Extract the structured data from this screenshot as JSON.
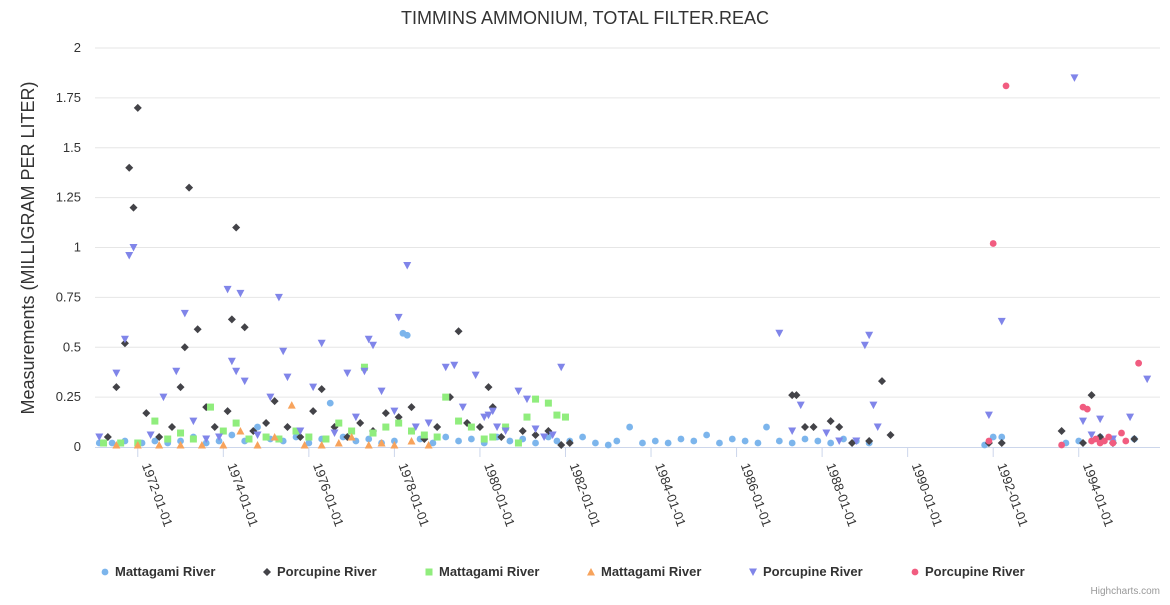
{
  "chart_data": {
    "type": "scatter",
    "title": "TIMMINS AMMONIUM, TOTAL FILTER.REAC",
    "xlabel": "",
    "ylabel": "Measurements (MILLIGRAM PER LITER)",
    "ylim": [
      0,
      2
    ],
    "yticks": [
      "0",
      "0.25",
      "0.5",
      "0.75",
      "1",
      "1.25",
      "1.5",
      "1.75",
      "2"
    ],
    "xlim": [
      1971.0,
      1995.9
    ],
    "xticks": [
      {
        "year": 1972,
        "label": "1972-01-01"
      },
      {
        "year": 1974,
        "label": "1974-01-01"
      },
      {
        "year": 1976,
        "label": "1976-01-01"
      },
      {
        "year": 1978,
        "label": "1978-01-01"
      },
      {
        "year": 1980,
        "label": "1980-01-01"
      },
      {
        "year": 1982,
        "label": "1982-01-01"
      },
      {
        "year": 1984,
        "label": "1984-01-01"
      },
      {
        "year": 1986,
        "label": "1986-01-01"
      },
      {
        "year": 1988,
        "label": "1988-01-01"
      },
      {
        "year": 1990,
        "label": "1990-01-01"
      },
      {
        "year": 1992,
        "label": "1992-01-01"
      },
      {
        "year": 1994,
        "label": "1994-01-01"
      }
    ],
    "legend_position": "bottom-center",
    "series": [
      {
        "name": "Mattagami River",
        "marker": "circle",
        "color": "#7cb5ec",
        "points": [
          [
            1971.1,
            0.02
          ],
          [
            1971.4,
            0.02
          ],
          [
            1971.7,
            0.03
          ],
          [
            1972.1,
            0.02
          ],
          [
            1972.4,
            0.03
          ],
          [
            1972.7,
            0.02
          ],
          [
            1973.0,
            0.03
          ],
          [
            1973.3,
            0.05
          ],
          [
            1973.6,
            0.02
          ],
          [
            1973.9,
            0.03
          ],
          [
            1974.2,
            0.06
          ],
          [
            1974.5,
            0.03
          ],
          [
            1974.8,
            0.1
          ],
          [
            1975.1,
            0.04
          ],
          [
            1975.4,
            0.03
          ],
          [
            1975.7,
            0.05
          ],
          [
            1976.0,
            0.02
          ],
          [
            1976.3,
            0.04
          ],
          [
            1976.5,
            0.22
          ],
          [
            1976.8,
            0.05
          ],
          [
            1977.1,
            0.03
          ],
          [
            1977.4,
            0.04
          ],
          [
            1977.7,
            0.02
          ],
          [
            1978.0,
            0.03
          ],
          [
            1978.2,
            0.57
          ],
          [
            1978.3,
            0.56
          ],
          [
            1978.6,
            0.04
          ],
          [
            1978.9,
            0.02
          ],
          [
            1979.2,
            0.05
          ],
          [
            1979.5,
            0.03
          ],
          [
            1979.8,
            0.04
          ],
          [
            1980.1,
            0.02
          ],
          [
            1980.4,
            0.05
          ],
          [
            1980.7,
            0.03
          ],
          [
            1981.0,
            0.04
          ],
          [
            1981.3,
            0.02
          ],
          [
            1981.6,
            0.05
          ],
          [
            1981.8,
            0.03
          ],
          [
            1982.1,
            0.03
          ],
          [
            1982.4,
            0.05
          ],
          [
            1982.7,
            0.02
          ],
          [
            1983.0,
            0.01
          ],
          [
            1983.2,
            0.03
          ],
          [
            1983.5,
            0.1
          ],
          [
            1983.8,
            0.02
          ],
          [
            1984.1,
            0.03
          ],
          [
            1984.4,
            0.02
          ],
          [
            1984.7,
            0.04
          ],
          [
            1985.0,
            0.03
          ],
          [
            1985.3,
            0.06
          ],
          [
            1985.6,
            0.02
          ],
          [
            1985.9,
            0.04
          ],
          [
            1986.2,
            0.03
          ],
          [
            1986.5,
            0.02
          ],
          [
            1986.7,
            0.1
          ],
          [
            1987.0,
            0.03
          ],
          [
            1987.3,
            0.02
          ],
          [
            1987.6,
            0.04
          ],
          [
            1987.9,
            0.03
          ],
          [
            1988.2,
            0.02
          ],
          [
            1988.5,
            0.04
          ],
          [
            1988.8,
            0.03
          ],
          [
            1989.1,
            0.02
          ],
          [
            1991.8,
            0.01
          ],
          [
            1992.0,
            0.05
          ],
          [
            1992.2,
            0.05
          ],
          [
            1993.7,
            0.02
          ],
          [
            1994.0,
            0.03
          ],
          [
            1994.5,
            0.05
          ],
          [
            1994.8,
            0.03
          ],
          [
            1995.3,
            0.04
          ]
        ]
      },
      {
        "name": "Porcupine River",
        "marker": "diamond",
        "color": "#434348",
        "points": [
          [
            1971.3,
            0.05
          ],
          [
            1971.5,
            0.3
          ],
          [
            1971.7,
            0.52
          ],
          [
            1971.8,
            1.4
          ],
          [
            1971.9,
            1.2
          ],
          [
            1972.0,
            1.7
          ],
          [
            1972.2,
            0.17
          ],
          [
            1972.5,
            0.05
          ],
          [
            1972.8,
            0.1
          ],
          [
            1973.0,
            0.3
          ],
          [
            1973.1,
            0.5
          ],
          [
            1973.2,
            1.3
          ],
          [
            1973.4,
            0.59
          ],
          [
            1973.6,
            0.2
          ],
          [
            1973.8,
            0.1
          ],
          [
            1974.1,
            0.18
          ],
          [
            1974.2,
            0.64
          ],
          [
            1974.3,
            1.1
          ],
          [
            1974.5,
            0.6
          ],
          [
            1974.7,
            0.08
          ],
          [
            1975.0,
            0.12
          ],
          [
            1975.2,
            0.23
          ],
          [
            1975.5,
            0.1
          ],
          [
            1975.8,
            0.05
          ],
          [
            1976.1,
            0.18
          ],
          [
            1976.3,
            0.29
          ],
          [
            1976.6,
            0.1
          ],
          [
            1976.9,
            0.05
          ],
          [
            1977.2,
            0.12
          ],
          [
            1977.5,
            0.08
          ],
          [
            1977.8,
            0.17
          ],
          [
            1978.1,
            0.15
          ],
          [
            1978.4,
            0.2
          ],
          [
            1978.7,
            0.04
          ],
          [
            1979.0,
            0.1
          ],
          [
            1979.3,
            0.25
          ],
          [
            1979.5,
            0.58
          ],
          [
            1979.7,
            0.12
          ],
          [
            1980.0,
            0.1
          ],
          [
            1980.2,
            0.3
          ],
          [
            1980.3,
            0.2
          ],
          [
            1980.5,
            0.05
          ],
          [
            1981.0,
            0.08
          ],
          [
            1981.3,
            0.06
          ],
          [
            1981.6,
            0.08
          ],
          [
            1981.9,
            0.01
          ],
          [
            1982.1,
            0.02
          ],
          [
            1987.3,
            0.26
          ],
          [
            1987.4,
            0.26
          ],
          [
            1987.6,
            0.1
          ],
          [
            1987.8,
            0.1
          ],
          [
            1988.2,
            0.13
          ],
          [
            1988.4,
            0.1
          ],
          [
            1988.7,
            0.02
          ],
          [
            1989.1,
            0.03
          ],
          [
            1989.4,
            0.33
          ],
          [
            1989.6,
            0.06
          ],
          [
            1991.9,
            0.02
          ],
          [
            1992.2,
            0.02
          ],
          [
            1993.6,
            0.08
          ],
          [
            1994.1,
            0.02
          ],
          [
            1994.3,
            0.26
          ],
          [
            1994.5,
            0.05
          ],
          [
            1994.8,
            0.02
          ],
          [
            1995.3,
            0.04
          ]
        ]
      },
      {
        "name": "Mattagami River",
        "marker": "square",
        "color": "#90ed7d",
        "points": [
          [
            1971.2,
            0.02
          ],
          [
            1971.6,
            0.02
          ],
          [
            1972.0,
            0.02
          ],
          [
            1972.4,
            0.13
          ],
          [
            1972.7,
            0.04
          ],
          [
            1973.0,
            0.07
          ],
          [
            1973.3,
            0.04
          ],
          [
            1973.7,
            0.2
          ],
          [
            1974.0,
            0.08
          ],
          [
            1974.3,
            0.12
          ],
          [
            1974.6,
            0.04
          ],
          [
            1975.0,
            0.05
          ],
          [
            1975.3,
            0.04
          ],
          [
            1975.7,
            0.08
          ],
          [
            1976.0,
            0.05
          ],
          [
            1976.4,
            0.04
          ],
          [
            1976.7,
            0.12
          ],
          [
            1977.0,
            0.08
          ],
          [
            1977.3,
            0.4
          ],
          [
            1977.5,
            0.07
          ],
          [
            1977.8,
            0.1
          ],
          [
            1978.1,
            0.12
          ],
          [
            1978.4,
            0.08
          ],
          [
            1978.7,
            0.06
          ],
          [
            1979.0,
            0.05
          ],
          [
            1979.2,
            0.25
          ],
          [
            1979.5,
            0.13
          ],
          [
            1979.8,
            0.1
          ],
          [
            1980.1,
            0.04
          ],
          [
            1980.3,
            0.05
          ],
          [
            1980.6,
            0.1
          ],
          [
            1980.9,
            0.02
          ],
          [
            1981.1,
            0.15
          ],
          [
            1981.3,
            0.24
          ],
          [
            1981.6,
            0.22
          ],
          [
            1981.8,
            0.16
          ],
          [
            1982.0,
            0.15
          ]
        ]
      },
      {
        "name": "Mattagami River",
        "marker": "triangle",
        "color": "#f7a35c",
        "points": [
          [
            1971.5,
            0.01
          ],
          [
            1972.0,
            0.01
          ],
          [
            1972.5,
            0.01
          ],
          [
            1973.0,
            0.01
          ],
          [
            1973.5,
            0.01
          ],
          [
            1974.0,
            0.01
          ],
          [
            1974.4,
            0.08
          ],
          [
            1974.8,
            0.01
          ],
          [
            1975.2,
            0.05
          ],
          [
            1975.6,
            0.21
          ],
          [
            1975.9,
            0.01
          ],
          [
            1976.3,
            0.01
          ],
          [
            1976.7,
            0.02
          ],
          [
            1977.0,
            0.05
          ],
          [
            1977.4,
            0.01
          ],
          [
            1977.7,
            0.02
          ],
          [
            1978.0,
            0.01
          ],
          [
            1978.4,
            0.03
          ],
          [
            1978.8,
            0.01
          ]
        ]
      },
      {
        "name": "Porcupine River",
        "marker": "triangle-down",
        "color": "#8085e9",
        "points": [
          [
            1971.1,
            0.05
          ],
          [
            1971.5,
            0.37
          ],
          [
            1971.7,
            0.54
          ],
          [
            1971.8,
            0.96
          ],
          [
            1971.9,
            1.0
          ],
          [
            1972.3,
            0.06
          ],
          [
            1972.6,
            0.25
          ],
          [
            1972.9,
            0.38
          ],
          [
            1973.1,
            0.67
          ],
          [
            1973.3,
            0.13
          ],
          [
            1973.6,
            0.04
          ],
          [
            1973.9,
            0.05
          ],
          [
            1974.1,
            0.79
          ],
          [
            1974.2,
            0.43
          ],
          [
            1974.3,
            0.38
          ],
          [
            1974.4,
            0.77
          ],
          [
            1974.5,
            0.33
          ],
          [
            1974.8,
            0.06
          ],
          [
            1975.1,
            0.25
          ],
          [
            1975.3,
            0.75
          ],
          [
            1975.4,
            0.48
          ],
          [
            1975.5,
            0.35
          ],
          [
            1975.8,
            0.08
          ],
          [
            1976.1,
            0.3
          ],
          [
            1976.3,
            0.52
          ],
          [
            1976.6,
            0.07
          ],
          [
            1976.9,
            0.37
          ],
          [
            1977.1,
            0.15
          ],
          [
            1977.3,
            0.38
          ],
          [
            1977.4,
            0.54
          ],
          [
            1977.5,
            0.51
          ],
          [
            1977.7,
            0.28
          ],
          [
            1978.0,
            0.18
          ],
          [
            1978.1,
            0.65
          ],
          [
            1978.3,
            0.91
          ],
          [
            1978.5,
            0.1
          ],
          [
            1978.8,
            0.12
          ],
          [
            1979.2,
            0.4
          ],
          [
            1979.4,
            0.41
          ],
          [
            1979.6,
            0.2
          ],
          [
            1979.9,
            0.36
          ],
          [
            1980.1,
            0.15
          ],
          [
            1980.2,
            0.16
          ],
          [
            1980.3,
            0.18
          ],
          [
            1980.4,
            0.1
          ],
          [
            1980.6,
            0.08
          ],
          [
            1980.9,
            0.28
          ],
          [
            1981.1,
            0.24
          ],
          [
            1981.3,
            0.09
          ],
          [
            1981.5,
            0.05
          ],
          [
            1981.7,
            0.06
          ],
          [
            1981.9,
            0.4
          ],
          [
            1987.0,
            0.57
          ],
          [
            1987.3,
            0.08
          ],
          [
            1987.5,
            0.21
          ],
          [
            1988.1,
            0.07
          ],
          [
            1988.4,
            0.03
          ],
          [
            1988.8,
            0.03
          ],
          [
            1989.0,
            0.51
          ],
          [
            1989.1,
            0.56
          ],
          [
            1989.2,
            0.21
          ],
          [
            1989.3,
            0.1
          ],
          [
            1991.9,
            0.16
          ],
          [
            1992.2,
            0.63
          ],
          [
            1993.9,
            1.85
          ],
          [
            1994.1,
            0.13
          ],
          [
            1994.3,
            0.06
          ],
          [
            1994.5,
            0.14
          ],
          [
            1994.8,
            0.04
          ],
          [
            1995.2,
            0.15
          ],
          [
            1995.6,
            0.34
          ]
        ]
      },
      {
        "name": "Porcupine River",
        "marker": "circle",
        "color": "#f15c80",
        "points": [
          [
            1991.9,
            0.03
          ],
          [
            1992.0,
            1.02
          ],
          [
            1992.3,
            1.81
          ],
          [
            1993.6,
            0.01
          ],
          [
            1994.1,
            0.2
          ],
          [
            1994.2,
            0.19
          ],
          [
            1994.3,
            0.03
          ],
          [
            1994.4,
            0.04
          ],
          [
            1994.5,
            0.02
          ],
          [
            1994.6,
            0.03
          ],
          [
            1994.7,
            0.05
          ],
          [
            1994.8,
            0.02
          ],
          [
            1995.0,
            0.07
          ],
          [
            1995.1,
            0.03
          ],
          [
            1995.4,
            0.42
          ]
        ]
      }
    ]
  },
  "credits": "Highcharts.com"
}
